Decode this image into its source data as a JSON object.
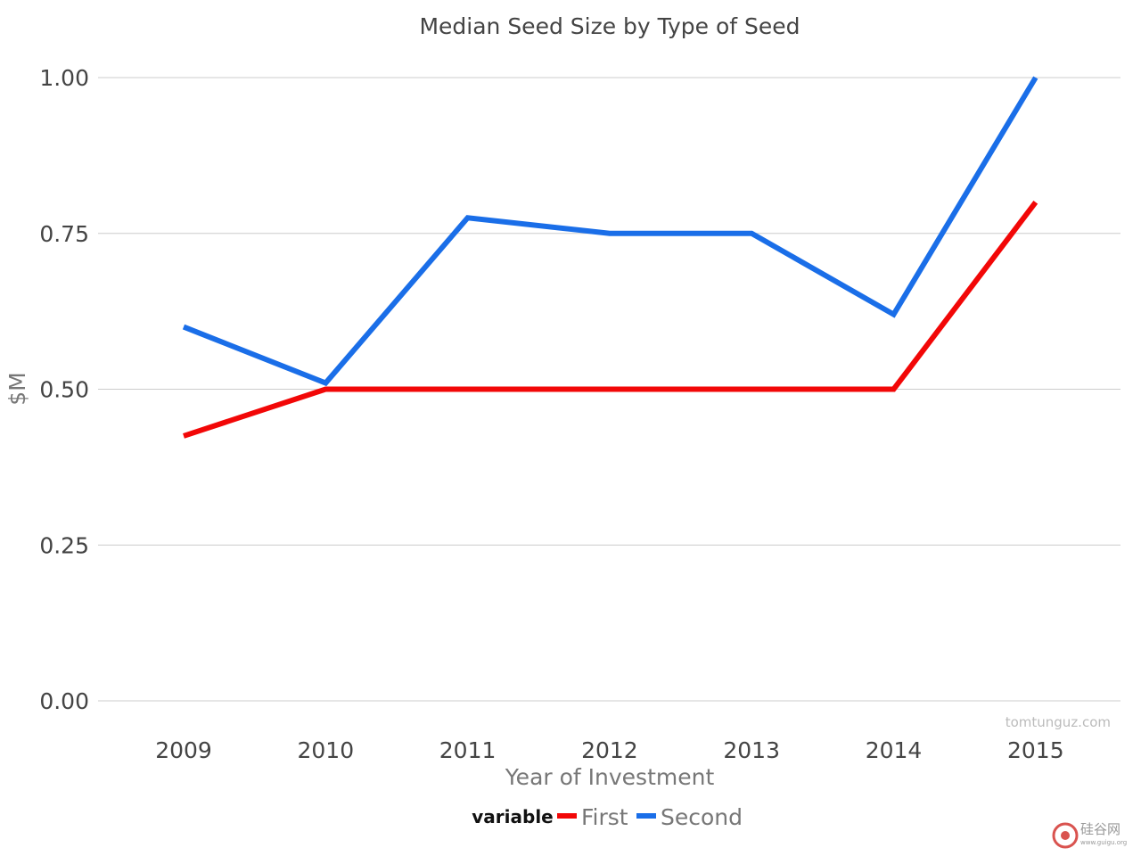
{
  "chart_data": {
    "type": "line",
    "title": "Median Seed Size by Type of Seed",
    "xlabel": "Year of Investment",
    "ylabel": "$M",
    "x": [
      "2009",
      "2010",
      "2011",
      "2012",
      "2013",
      "2014",
      "2015"
    ],
    "y_ticks": [
      "0.00",
      "0.25",
      "0.50",
      "0.75",
      "1.00"
    ],
    "ylim": [
      0,
      1
    ],
    "grid": true,
    "legend": {
      "placement": "bottom",
      "heading": "variable"
    },
    "series": [
      {
        "name": "First",
        "color": "#f20707",
        "values": [
          0.425,
          0.5,
          0.5,
          0.5,
          0.5,
          0.5,
          0.8
        ]
      },
      {
        "name": "Second",
        "color": "#1a6ee8",
        "values": [
          0.6,
          0.51,
          0.775,
          0.75,
          0.75,
          0.62,
          1.0
        ]
      }
    ]
  },
  "credit": "tomtunguz.com",
  "watermark": {
    "text": "硅谷网",
    "url": "www.guigu.org"
  }
}
